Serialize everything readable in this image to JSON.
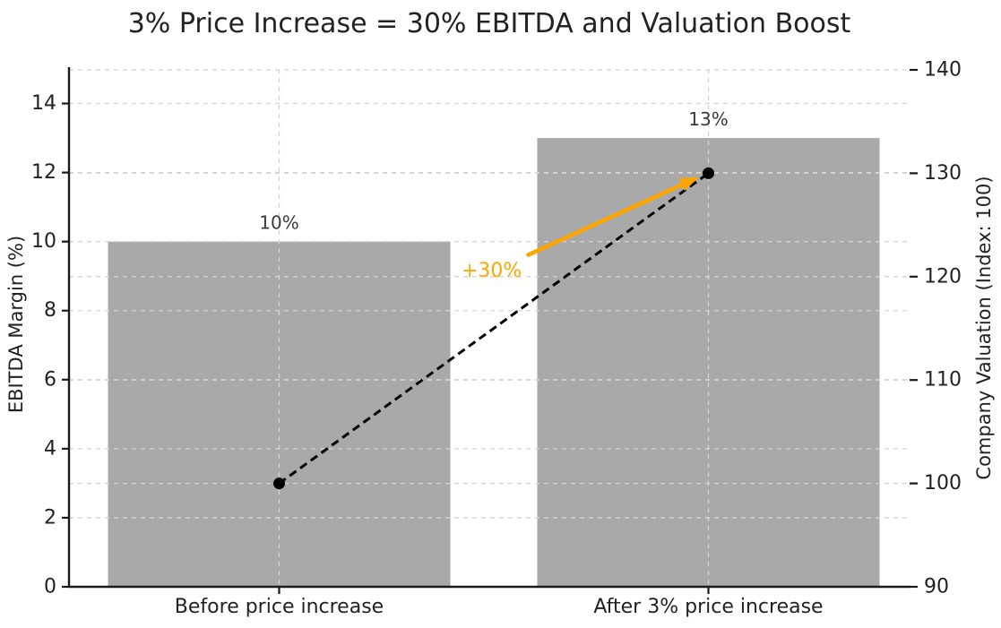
{
  "chart_data": {
    "type": "bar",
    "title": "3% Price Increase = 30% EBITDA and Valuation Boost",
    "categories": [
      "Before price increase",
      "After 3% price increase"
    ],
    "series": [
      {
        "name": "EBITDA Margin",
        "type": "bar",
        "axis": "left",
        "values": [
          10,
          13
        ],
        "value_labels": [
          "10%",
          "13%"
        ],
        "color": "#a9a9a9"
      },
      {
        "name": "Company Valuation",
        "type": "line",
        "axis": "right",
        "values": [
          100,
          130
        ],
        "line_style": "dashed",
        "marker": "circle",
        "color": "#000000"
      }
    ],
    "left_axis": {
      "label": "EBITDA Margin (%)",
      "range": [
        0,
        15
      ],
      "ticks": [
        0,
        2,
        4,
        6,
        8,
        10,
        12,
        14
      ]
    },
    "right_axis": {
      "label": "Company Valuation (Index: 100)",
      "range": [
        90,
        140
      ],
      "ticks": [
        90,
        100,
        110,
        120,
        130,
        140
      ]
    },
    "annotation": {
      "text": "+30%",
      "color": "#ffa500",
      "points_from_value": 100,
      "points_to_value": 130
    },
    "grid": {
      "show": true,
      "style": "dashed",
      "color": "#d4d4d4"
    },
    "legend_position": "none",
    "background": "#ffffff",
    "spine_color": "#1a1a1a"
  }
}
